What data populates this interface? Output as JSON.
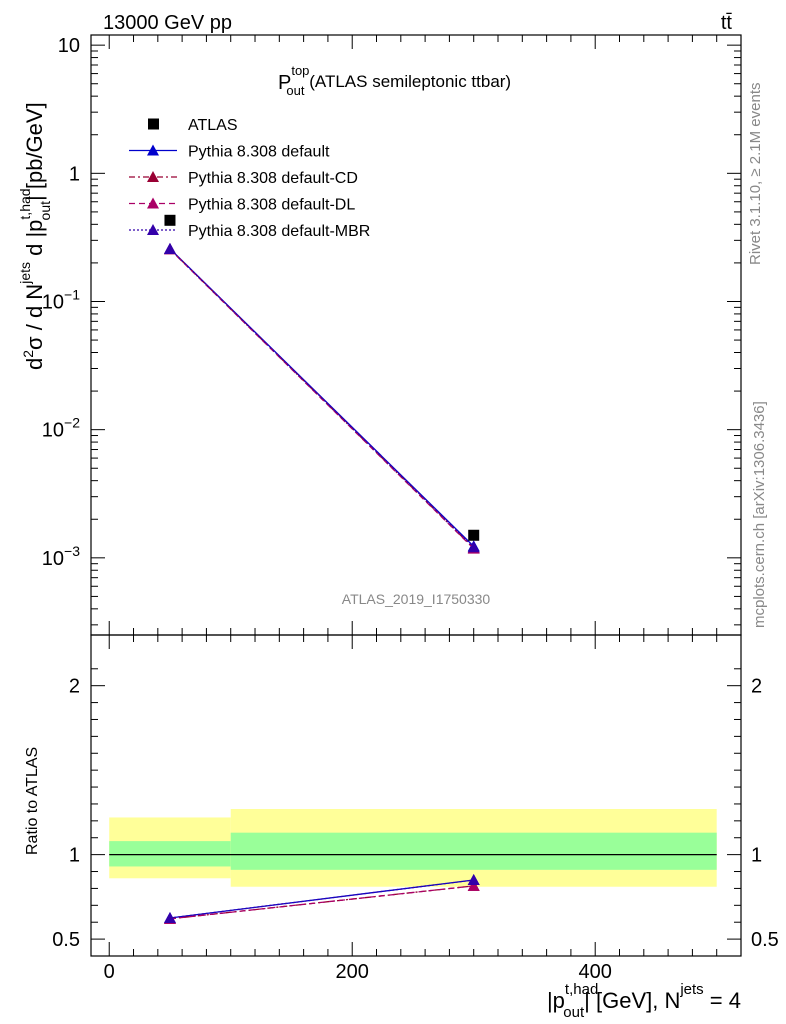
{
  "header": {
    "left": "13000 GeV pp",
    "right": "tt̄"
  },
  "plot_title": {
    "main": "P",
    "sup": "top",
    "sub": "out",
    "rest": " (ATLAS semileptonic ttbar)"
  },
  "side_labels": {
    "rivet": "Rivet 3.1.10, ≥ 2.1M events",
    "mcplots": "mcplots.cern.ch [arXiv:1306.3436]"
  },
  "watermark": "ATLAS_2019_I1750330",
  "axes": {
    "main_ylabel": {
      "a": "d",
      "a_sup": "2",
      "b": "σ / d N",
      "b_sup": "jets",
      "c": " d |p",
      "c_sup": "t,had",
      "c_sub": "out",
      "d": "| [pb/GeV]"
    },
    "ratio_ylabel": "Ratio to ATLAS",
    "xlabel": {
      "a": "|p",
      "a_sup": "t,had",
      "a_sub": "out",
      "b": "| [GeV], N",
      "b_sup": "jets",
      "c": " = 4"
    },
    "main_ticks": [
      {
        "base": "10",
        "exp": "",
        "value": 10
      },
      {
        "base": "1",
        "exp": "",
        "value": 1
      },
      {
        "base": "10",
        "exp": "−1",
        "value": 0.1
      },
      {
        "base": "10",
        "exp": "−2",
        "value": 0.01
      },
      {
        "base": "10",
        "exp": "−3",
        "value": 0.001
      }
    ],
    "ratio_ticks": [
      {
        "label": "2",
        "value": 2
      },
      {
        "label": "1",
        "value": 1
      },
      {
        "label": "0.5",
        "value": 0.5
      }
    ],
    "x_ticks": [
      {
        "label": "0",
        "value": 0
      },
      {
        "label": "200",
        "value": 200
      },
      {
        "label": "400",
        "value": 400
      }
    ]
  },
  "legend": [
    {
      "label": "ATLAS",
      "color": "#000000",
      "marker": "square",
      "dash": "none"
    },
    {
      "label": "Pythia 8.308 default",
      "color": "#0000cc",
      "marker": "triangle",
      "dash": "solid"
    },
    {
      "label": "Pythia 8.308 default-CD",
      "color": "#990033",
      "marker": "triangle",
      "dash": "dashdot"
    },
    {
      "label": "Pythia 8.308 default-DL",
      "color": "#aa0066",
      "marker": "triangle",
      "dash": "dashed"
    },
    {
      "label": "Pythia 8.308 default-MBR",
      "color": "#3300aa",
      "marker": "triangle",
      "dash": "dotted"
    }
  ],
  "chart_data": {
    "type": "line",
    "x_bins": [
      [
        0,
        100
      ],
      [
        100,
        500
      ]
    ],
    "x": [
      50,
      300
    ],
    "xlim": [
      -15,
      520
    ],
    "main": {
      "yscale": "log",
      "ylim": [
        0.00025,
        12
      ],
      "data": {
        "name": "ATLAS",
        "values": [
          0.43,
          0.0015
        ]
      },
      "series": [
        {
          "name": "Pythia 8.308 default",
          "values": [
            0.258,
            0.00123
          ]
        },
        {
          "name": "Pythia 8.308 default-CD",
          "values": [
            0.256,
            0.00119
          ]
        },
        {
          "name": "Pythia 8.308 default-DL",
          "values": [
            0.255,
            0.00118
          ]
        },
        {
          "name": "Pythia 8.308 default-MBR",
          "values": [
            0.257,
            0.00121
          ]
        }
      ]
    },
    "ratio": {
      "ylim": [
        0.4,
        2.3
      ],
      "band_inner": [
        [
          0.93,
          1.08
        ],
        [
          0.91,
          1.13
        ]
      ],
      "band_outer": [
        [
          0.86,
          1.22
        ],
        [
          0.81,
          1.27
        ]
      ],
      "series": [
        {
          "name": "Pythia 8.308 default",
          "values": [
            0.625,
            0.85
          ]
        },
        {
          "name": "Pythia 8.308 default-CD",
          "values": [
            0.62,
            0.815
          ]
        },
        {
          "name": "Pythia 8.308 default-DL",
          "values": [
            0.62,
            0.815
          ]
        },
        {
          "name": "Pythia 8.308 default-MBR",
          "values": [
            0.625,
            0.85
          ]
        }
      ]
    }
  }
}
